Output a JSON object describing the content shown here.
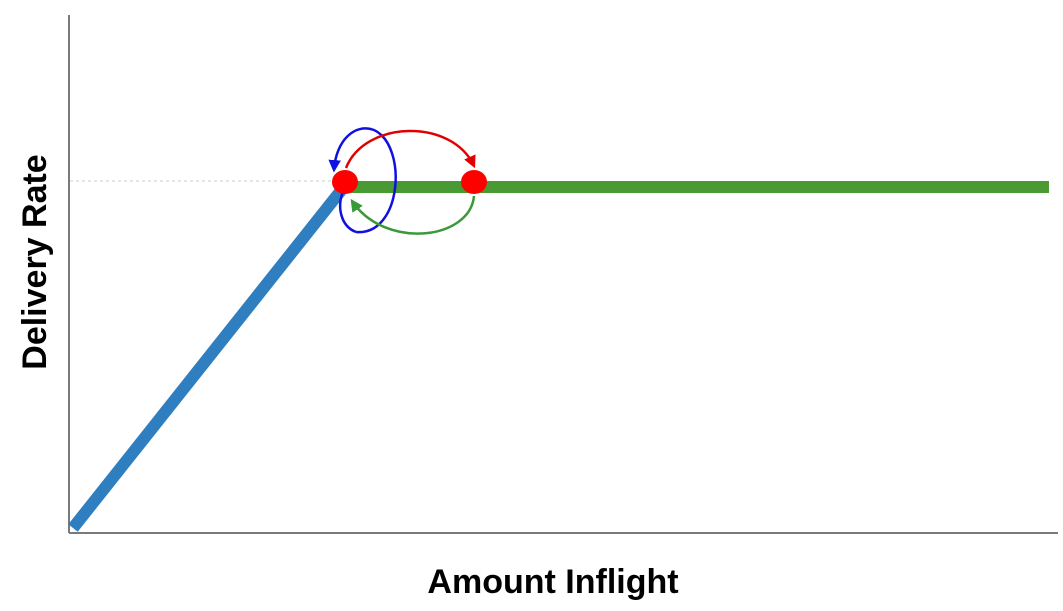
{
  "diagram": {
    "x_axis_label": "Amount Inflight",
    "y_axis_label": "Delivery Rate",
    "colors": {
      "axis": "#7a7a7a",
      "rising_segment": "#2f7fc0",
      "plateau_segment": "#4a9a34",
      "operating_point": "#ff0000",
      "guide_line": "#cfcfcf",
      "arrow_red": "#e00000",
      "arrow_blue": "#1010e0",
      "arrow_green": "#3a9a3a"
    },
    "operating_points": [
      {
        "name": "point-at-knee"
      },
      {
        "name": "point-on-plateau"
      }
    ]
  }
}
